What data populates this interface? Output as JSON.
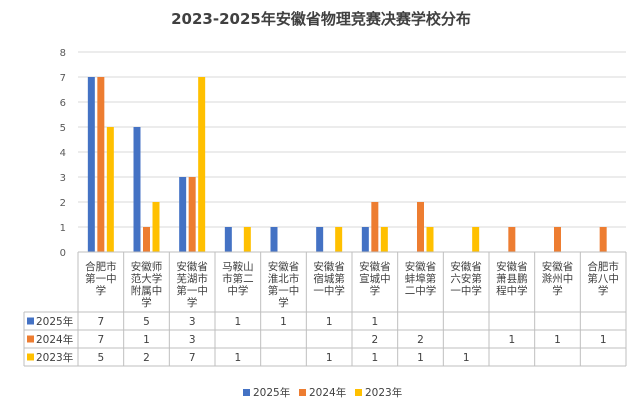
{
  "chart_data": {
    "type": "bar",
    "title": "2023-2025年安徽省物理竞赛决赛学校分布",
    "categories": [
      [
        "合肥市",
        "第一中",
        "学"
      ],
      [
        "安徽师",
        "范大学",
        "附属中",
        "学"
      ],
      [
        "安徽省",
        "芜湖市",
        "第一中",
        "学"
      ],
      [
        "马鞍山",
        "市第二",
        "中学"
      ],
      [
        "安徽省",
        "淮北市",
        "第一中",
        "学"
      ],
      [
        "安徽省",
        "宿城第",
        "一中学"
      ],
      [
        "安徽省",
        "宣城中",
        "学"
      ],
      [
        "安徽省",
        "蚌埠第",
        "二中学"
      ],
      [
        "安徽省",
        "六安第",
        "一中学"
      ],
      [
        "安徽省",
        "萧县鹏",
        "程中学"
      ],
      [
        "安徽省",
        "滁州中",
        "学"
      ],
      [
        "合肥市",
        "第八中",
        "学"
      ]
    ],
    "series": [
      {
        "name": "2025年",
        "color": "#4472C4",
        "values": [
          7,
          5,
          3,
          1,
          1,
          1,
          1,
          null,
          null,
          null,
          null,
          null
        ]
      },
      {
        "name": "2024年",
        "color": "#ED7D31",
        "values": [
          7,
          1,
          3,
          null,
          null,
          null,
          2,
          2,
          null,
          1,
          1,
          1
        ]
      },
      {
        "name": "2023年",
        "color": "#FFC000",
        "values": [
          5,
          2,
          7,
          1,
          null,
          1,
          1,
          1,
          1,
          null,
          null,
          null
        ]
      }
    ],
    "ylim": [
      0,
      8
    ],
    "yticks": [
      0,
      1,
      2,
      3,
      4,
      5,
      6,
      7,
      8
    ],
    "grid": true,
    "legend": "bottom",
    "data_table": true
  }
}
